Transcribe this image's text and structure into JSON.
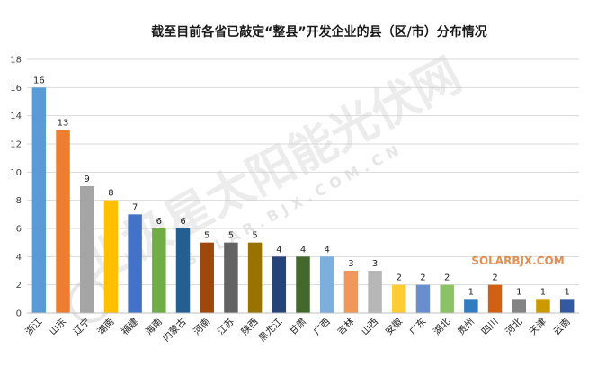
{
  "chart_data": {
    "type": "bar",
    "title": "截至目前各省已敲定“整县”开发企业的县（区/市）分布情况",
    "xlabel": "",
    "ylabel": "",
    "ylim": [
      0,
      18
    ],
    "yticks": [
      0,
      2,
      4,
      6,
      8,
      10,
      12,
      14,
      16,
      18
    ],
    "grid": true,
    "legend": "none",
    "categories": [
      "浙江",
      "山东",
      "辽宁",
      "湖南",
      "福建",
      "海南",
      "内蒙古",
      "河南",
      "江苏",
      "陕西",
      "黑龙江",
      "甘肃",
      "广西",
      "吉林",
      "山西",
      "安徽",
      "广东",
      "湖北",
      "贵州",
      "四川",
      "河北",
      "天津",
      "云南"
    ],
    "values": [
      16,
      13,
      9,
      8,
      7,
      6,
      6,
      5,
      5,
      5,
      4,
      4,
      4,
      3,
      3,
      2,
      2,
      2,
      1,
      2,
      1,
      1,
      1
    ],
    "colors": [
      "#5b9bd5",
      "#ed7d31",
      "#a5a5a5",
      "#ffc000",
      "#4472c4",
      "#70ad47",
      "#255e91",
      "#9e480e",
      "#636363",
      "#997300",
      "#264478",
      "#43682b",
      "#7cafdd",
      "#f1975a",
      "#b7b7b7",
      "#ffcd33",
      "#698ed0",
      "#8cc168",
      "#327dc2",
      "#d26012",
      "#848484",
      "#cc9a00",
      "#335aa1"
    ]
  },
  "watermark": {
    "main": "北极星太阳能光伏网",
    "url": "SOLAR.BJX.COM.CN",
    "corner": "SOLARBJX.COM"
  }
}
